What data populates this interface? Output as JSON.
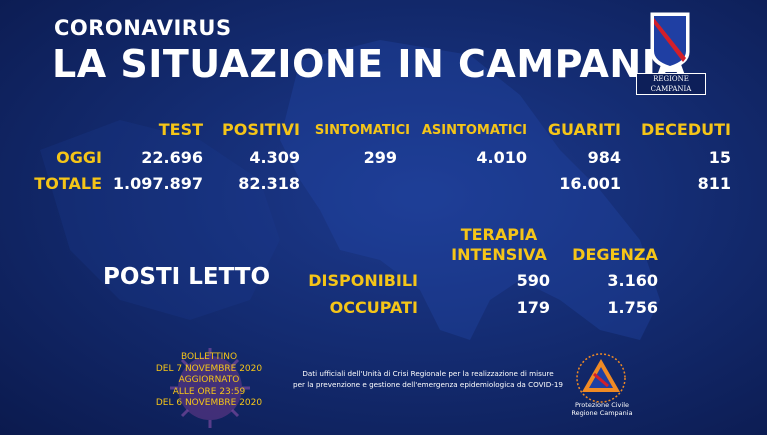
{
  "title": {
    "small": "CORONAVIRUS",
    "main": "LA SITUAZIONE IN CAMPANIA"
  },
  "logo": {
    "text": "REGIONE CAMPANIA",
    "icon": "regione-campania-shield"
  },
  "colors": {
    "accent": "#f5c518",
    "background": "#142c72",
    "text": "#ffffff"
  },
  "table": {
    "headers": {
      "test": "TEST",
      "positivi": "POSITIVI",
      "sintomatici": "SINTOMATICI",
      "asintomatici": "ASINTOMATICI",
      "guariti": "GUARITI",
      "deceduti": "DECEDUTI"
    },
    "oggi": {
      "label": "OGGI",
      "test": "22.696",
      "positivi": "4.309",
      "sintomatici": "299",
      "asintomatici": "4.010",
      "guariti": "984",
      "deceduti": "15"
    },
    "totale": {
      "label": "TOTALE",
      "test": "1.097.897",
      "positivi": "82.318",
      "guariti": "16.001",
      "deceduti": "811"
    }
  },
  "beds": {
    "title": "POSTI LETTO",
    "headers": {
      "ti_line1": "TERAPIA",
      "ti_line2": "INTENSIVA",
      "degenza": "DEGENZA"
    },
    "disponibili": {
      "label": "DISPONIBILI",
      "ti": "590",
      "degenza": "3.160"
    },
    "occupati": {
      "label": "OCCUPATI",
      "ti": "179",
      "degenza": "1.756"
    }
  },
  "bollettino": {
    "line1": "BOLLETTINO",
    "line2": "DEL 7 NOVEMBRE 2020",
    "line3": "AGGIORNATO",
    "line4": "ALLE ORE 23:59",
    "line5": "DEL 6 NOVEMBRE  2020"
  },
  "note": {
    "line1": "Dati ufficiali dell'Unità di Crisi Regionale per la realizzazione di misure",
    "line2": "per la prevenzione e gestione dell'emergenza epidemiologica da COVID-19"
  },
  "protezione_civile": {
    "line1": "Protezione Civile",
    "line2": "Regione Campania",
    "icon": "protezione-civile-logo"
  }
}
